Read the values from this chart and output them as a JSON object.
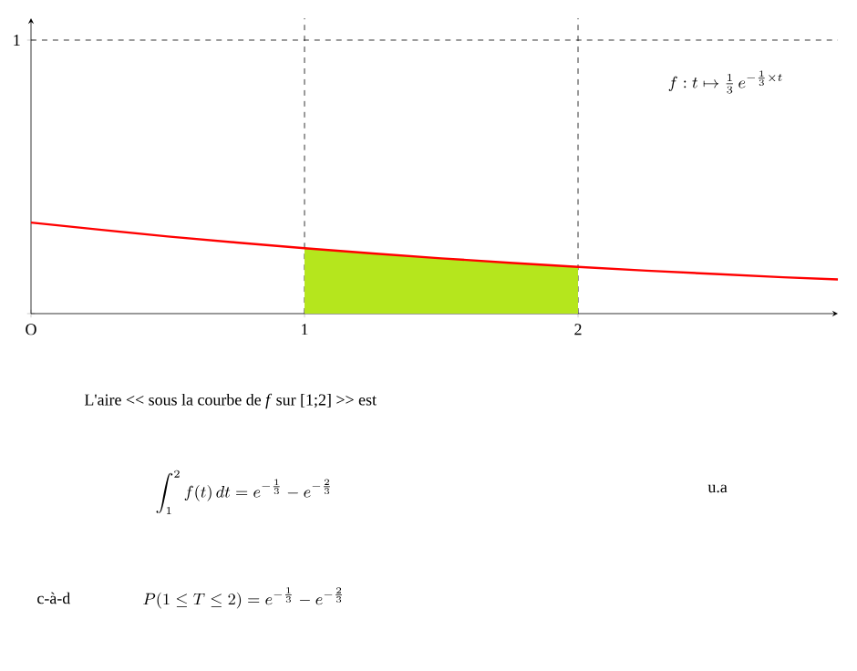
{
  "chart_data": {
    "type": "line",
    "xlim": [
      0,
      2.95
    ],
    "ylim": [
      0,
      1.08
    ],
    "xticks": [
      {
        "value": 0,
        "label": "O"
      },
      1,
      2
    ],
    "yticks": [
      {
        "value": 0,
        "label": null
      },
      1
    ],
    "series": [
      {
        "type": "area",
        "color": "#b5e61d",
        "x": [
          1,
          1.25,
          1.5,
          1.75,
          2
        ],
        "values": [
          0.239,
          0.22,
          0.202,
          0.186,
          0.171
        ]
      },
      {
        "color": "#ff0000",
        "x": [
          0,
          0.25,
          0.5,
          0.75,
          1,
          1.25,
          1.5,
          1.75,
          2,
          2.25,
          2.5,
          2.75,
          2.95
        ],
        "values": [
          0.333,
          0.307,
          0.282,
          0.26,
          0.239,
          0.22,
          0.202,
          0.186,
          0.171,
          0.157,
          0.145,
          0.133,
          0.125
        ]
      }
    ],
    "ref_lines": [
      {
        "axis": "x",
        "value": 1,
        "line_style": "dashed"
      },
      {
        "axis": "x",
        "value": 2,
        "line_style": "dashed"
      },
      {
        "axis": "y",
        "value": 1,
        "line_style": "dashed"
      }
    ],
    "grid": false,
    "annotations": [
      "f:t\\mapsto \\frac{1}{3}\\,e^{-\\frac{1}{3}\\times t}",
      "L'aire << sous la courbe de *f* sur [1;2] >> est",
      "\\int_1^2 f(t)\\,dt = e^{-\\frac{1}{3}} - e^{-\\frac{2}{3}}",
      "u.a",
      "c-à-d",
      "P(1\\le T\\le 2) = e^{-\\frac{1}{3}} - e^{-\\frac{2}{3}}"
    ]
  }
}
